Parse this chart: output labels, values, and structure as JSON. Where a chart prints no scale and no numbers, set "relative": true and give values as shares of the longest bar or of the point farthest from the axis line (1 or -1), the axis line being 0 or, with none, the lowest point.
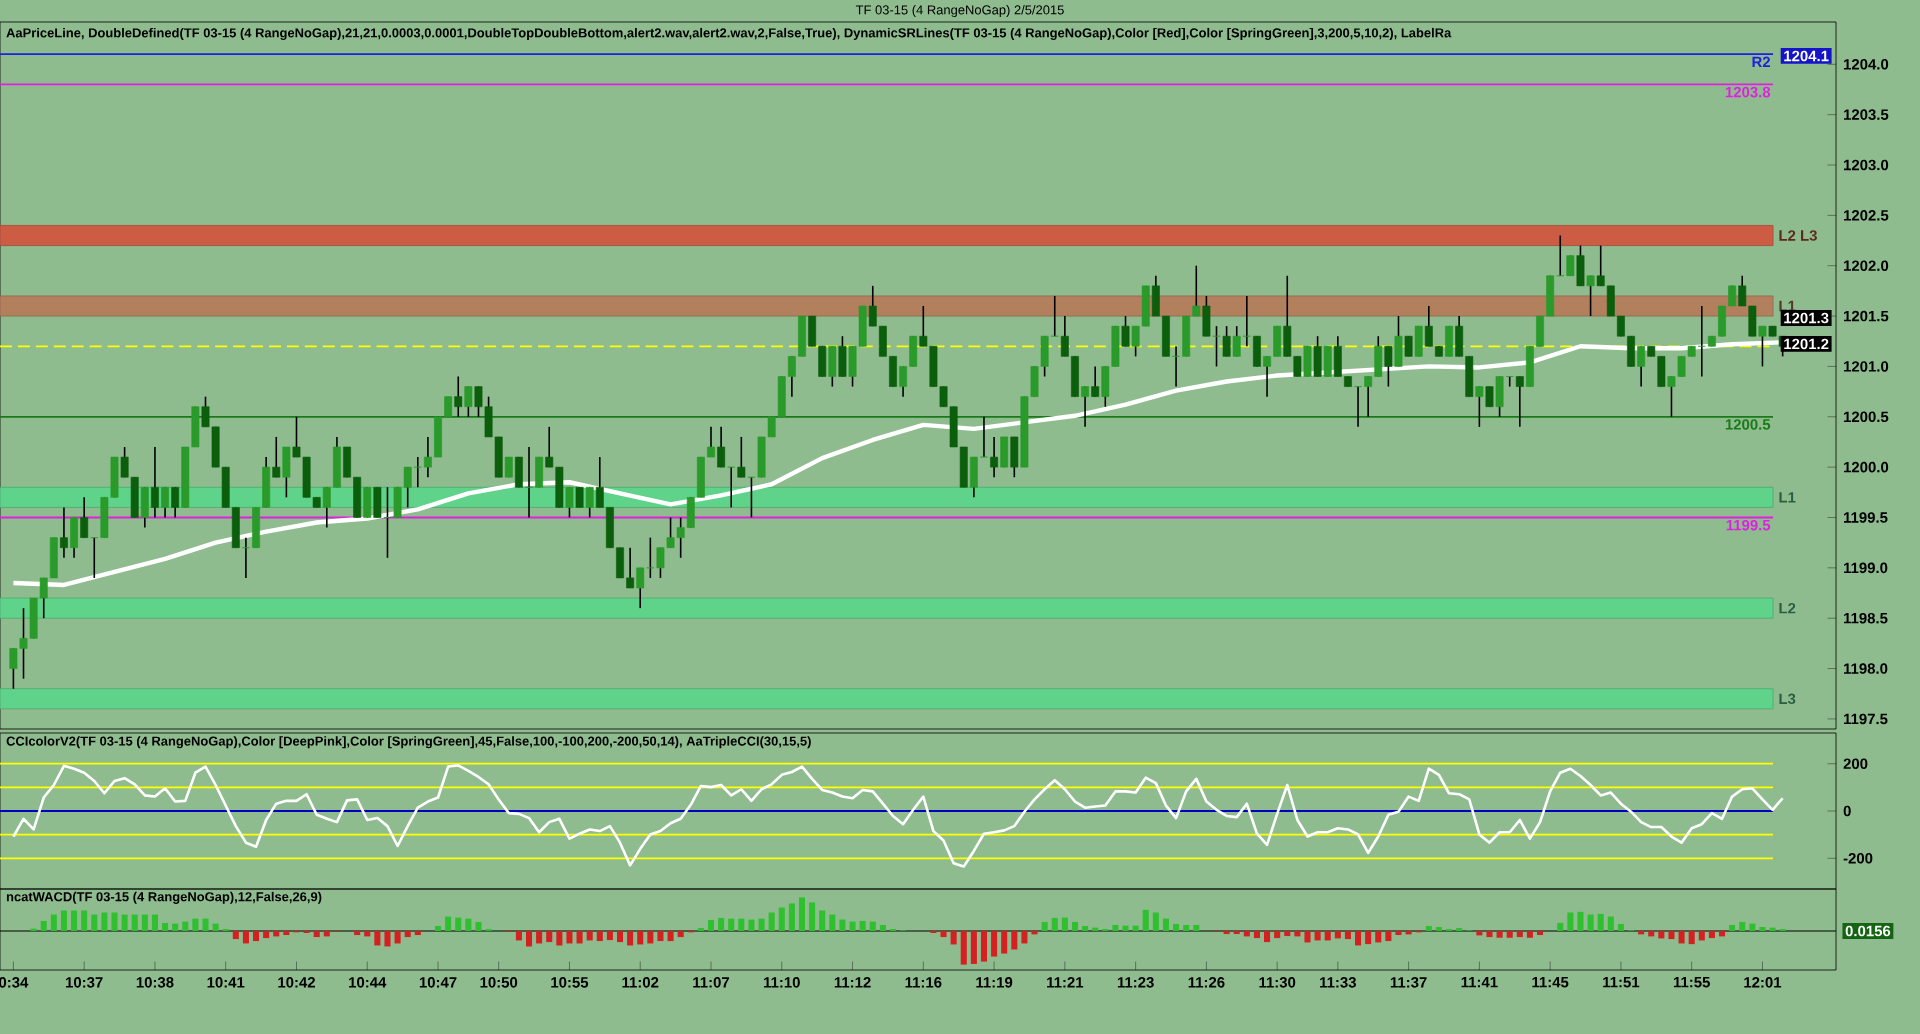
{
  "chart_data": [
    {
      "type": "candlestick",
      "title": "TF 03-15 (4 RangeNoGap)  2/5/2015",
      "subtitle": "AaPriceLine,  DoubleDefined(TF  03-15  (4  RangeNoGap),21,21,0.0003,0.0001,DoubleTopDoubleBottom,alert2.wav,alert2.wav,2,False,True),  DynamicSRLines(TF  03-15  (4  RangeNoGap),Color  [Red],Color  [SpringGreen],3,200,5,10,2),  LabelRa",
      "ohlc": [
        [
          1198.0,
          1198.2,
          1197.8,
          1198.2
        ],
        [
          1198.2,
          1198.6,
          1197.9,
          1198.3
        ],
        [
          1198.3,
          1198.7,
          1198.3,
          1198.7
        ],
        [
          1198.7,
          1198.9,
          1198.5,
          1198.9
        ],
        [
          1198.9,
          1199.3,
          1198.9,
          1199.3
        ],
        [
          1199.3,
          1199.6,
          1199.1,
          1199.2
        ],
        [
          1199.2,
          1199.5,
          1199.1,
          1199.5
        ],
        [
          1199.5,
          1199.7,
          1199.3,
          1199.3
        ],
        [
          1199.3,
          1199.3,
          1198.9,
          1199.3
        ],
        [
          1199.3,
          1199.7,
          1199.3,
          1199.7
        ],
        [
          1199.7,
          1200.1,
          1199.7,
          1200.1
        ],
        [
          1200.1,
          1200.2,
          1199.9,
          1199.9
        ],
        [
          1199.9,
          1199.9,
          1199.5,
          1199.5
        ],
        [
          1199.5,
          1199.8,
          1199.4,
          1199.8
        ],
        [
          1199.8,
          1200.2,
          1199.5,
          1199.6
        ],
        [
          1199.6,
          1199.8,
          1199.5,
          1199.8
        ],
        [
          1199.8,
          1199.8,
          1199.5,
          1199.6
        ],
        [
          1199.6,
          1200.2,
          1199.6,
          1200.2
        ],
        [
          1200.2,
          1200.6,
          1200.2,
          1200.6
        ],
        [
          1200.6,
          1200.7,
          1200.4,
          1200.4
        ],
        [
          1200.4,
          1200.4,
          1200.0,
          1200.0
        ],
        [
          1200.0,
          1200.0,
          1199.6,
          1199.6
        ],
        [
          1199.6,
          1199.6,
          1199.2,
          1199.2
        ],
        [
          1199.2,
          1199.3,
          1198.9,
          1199.2
        ],
        [
          1199.2,
          1199.6,
          1199.2,
          1199.6
        ],
        [
          1199.6,
          1200.1,
          1199.6,
          1200.0
        ],
        [
          1200.0,
          1200.3,
          1199.9,
          1199.9
        ],
        [
          1199.9,
          1200.2,
          1199.7,
          1200.2
        ],
        [
          1200.2,
          1200.5,
          1200.1,
          1200.1
        ],
        [
          1200.1,
          1200.1,
          1199.7,
          1199.7
        ],
        [
          1199.7,
          1199.7,
          1199.6,
          1199.6
        ],
        [
          1199.6,
          1199.8,
          1199.4,
          1199.8
        ],
        [
          1199.8,
          1200.3,
          1199.8,
          1200.2
        ],
        [
          1200.2,
          1200.2,
          1199.9,
          1199.9
        ],
        [
          1199.9,
          1199.9,
          1199.5,
          1199.5
        ],
        [
          1199.5,
          1199.8,
          1199.5,
          1199.8
        ],
        [
          1199.8,
          1199.8,
          1199.5,
          1199.5
        ],
        [
          1199.5,
          1199.8,
          1199.1,
          1199.5
        ],
        [
          1199.5,
          1199.8,
          1199.5,
          1199.8
        ],
        [
          1199.8,
          1200.0,
          1199.6,
          1200.0
        ],
        [
          1200.0,
          1200.1,
          1199.8,
          1200.0
        ],
        [
          1200.0,
          1200.3,
          1199.9,
          1200.1
        ],
        [
          1200.1,
          1200.5,
          1200.1,
          1200.5
        ],
        [
          1200.5,
          1200.7,
          1200.5,
          1200.7
        ],
        [
          1200.7,
          1200.9,
          1200.5,
          1200.6
        ],
        [
          1200.6,
          1200.8,
          1200.5,
          1200.8
        ],
        [
          1200.8,
          1200.8,
          1200.5,
          1200.6
        ],
        [
          1200.6,
          1200.7,
          1200.3,
          1200.3
        ],
        [
          1200.3,
          1200.3,
          1199.9,
          1199.9
        ],
        [
          1199.9,
          1200.1,
          1199.9,
          1200.1
        ],
        [
          1200.1,
          1200.1,
          1199.8,
          1199.8
        ],
        [
          1199.8,
          1200.2,
          1199.5,
          1199.8
        ],
        [
          1199.8,
          1200.1,
          1199.8,
          1200.1
        ],
        [
          1200.1,
          1200.4,
          1200.0,
          1200.0
        ],
        [
          1200.0,
          1200.0,
          1199.6,
          1199.6
        ],
        [
          1199.6,
          1199.8,
          1199.5,
          1199.8
        ],
        [
          1199.8,
          1199.8,
          1199.6,
          1199.6
        ],
        [
          1199.6,
          1199.8,
          1199.5,
          1199.8
        ],
        [
          1199.8,
          1200.1,
          1199.6,
          1199.6
        ],
        [
          1199.6,
          1199.6,
          1199.2,
          1199.2
        ],
        [
          1199.2,
          1199.2,
          1198.9,
          1198.9
        ],
        [
          1198.9,
          1199.2,
          1198.8,
          1198.8
        ],
        [
          1198.8,
          1199.0,
          1198.6,
          1199.0
        ],
        [
          1199.0,
          1199.3,
          1198.9,
          1199.0
        ],
        [
          1199.0,
          1199.2,
          1198.9,
          1199.2
        ],
        [
          1199.2,
          1199.5,
          1199.2,
          1199.3
        ],
        [
          1199.3,
          1199.5,
          1199.1,
          1199.4
        ],
        [
          1199.4,
          1199.7,
          1199.4,
          1199.7
        ],
        [
          1199.7,
          1200.1,
          1199.7,
          1200.1
        ],
        [
          1200.1,
          1200.4,
          1200.1,
          1200.2
        ],
        [
          1200.2,
          1200.4,
          1200.0,
          1200.0
        ],
        [
          1200.0,
          1200.0,
          1199.6,
          1200.0
        ],
        [
          1200.0,
          1200.3,
          1199.9,
          1199.9
        ],
        [
          1199.9,
          1199.9,
          1199.5,
          1199.9
        ],
        [
          1199.9,
          1200.3,
          1199.9,
          1200.3
        ],
        [
          1200.3,
          1200.5,
          1200.3,
          1200.5
        ],
        [
          1200.5,
          1200.9,
          1200.5,
          1200.9
        ],
        [
          1200.9,
          1201.1,
          1200.7,
          1201.1
        ],
        [
          1201.1,
          1201.5,
          1201.1,
          1201.5
        ],
        [
          1201.5,
          1201.5,
          1201.2,
          1201.2
        ],
        [
          1201.2,
          1201.2,
          1200.9,
          1200.9
        ],
        [
          1200.9,
          1201.2,
          1200.8,
          1201.2
        ],
        [
          1201.2,
          1201.3,
          1200.9,
          1200.9
        ],
        [
          1200.9,
          1201.2,
          1200.8,
          1201.2
        ],
        [
          1201.2,
          1201.6,
          1201.2,
          1201.6
        ],
        [
          1201.6,
          1201.8,
          1201.4,
          1201.4
        ],
        [
          1201.4,
          1201.4,
          1201.1,
          1201.1
        ],
        [
          1201.1,
          1201.1,
          1200.8,
          1200.8
        ],
        [
          1200.8,
          1201.0,
          1200.7,
          1201.0
        ],
        [
          1201.0,
          1201.3,
          1201.0,
          1201.3
        ],
        [
          1201.3,
          1201.6,
          1201.2,
          1201.2
        ],
        [
          1201.2,
          1201.2,
          1200.8,
          1200.8
        ],
        [
          1200.8,
          1200.8,
          1200.6,
          1200.6
        ],
        [
          1200.6,
          1200.6,
          1200.2,
          1200.2
        ],
        [
          1200.2,
          1200.2,
          1199.8,
          1199.8
        ],
        [
          1199.8,
          1200.1,
          1199.7,
          1200.1
        ],
        [
          1200.1,
          1200.5,
          1200.1,
          1200.1
        ],
        [
          1200.1,
          1200.3,
          1199.9,
          1200.0
        ],
        [
          1200.0,
          1200.3,
          1200.0,
          1200.3
        ],
        [
          1200.3,
          1200.3,
          1199.9,
          1200.0
        ],
        [
          1200.0,
          1200.7,
          1200.0,
          1200.7
        ],
        [
          1200.7,
          1201.0,
          1200.7,
          1201.0
        ],
        [
          1201.0,
          1201.3,
          1200.9,
          1201.3
        ],
        [
          1201.3,
          1201.7,
          1201.3,
          1201.3
        ],
        [
          1201.3,
          1201.5,
          1201.1,
          1201.1
        ],
        [
          1201.1,
          1201.1,
          1200.7,
          1200.7
        ],
        [
          1200.7,
          1200.8,
          1200.4,
          1200.8
        ],
        [
          1200.8,
          1201.0,
          1200.7,
          1200.7
        ],
        [
          1200.7,
          1201.0,
          1200.6,
          1201.0
        ],
        [
          1201.0,
          1201.4,
          1201.0,
          1201.4
        ],
        [
          1201.4,
          1201.5,
          1201.2,
          1201.2
        ],
        [
          1201.2,
          1201.4,
          1201.1,
          1201.4
        ],
        [
          1201.4,
          1201.8,
          1201.4,
          1201.8
        ],
        [
          1201.8,
          1201.9,
          1201.5,
          1201.5
        ],
        [
          1201.5,
          1201.5,
          1201.1,
          1201.1
        ],
        [
          1201.1,
          1201.2,
          1200.8,
          1201.1
        ],
        [
          1201.1,
          1201.5,
          1201.1,
          1201.5
        ],
        [
          1201.5,
          1202.0,
          1201.5,
          1201.6
        ],
        [
          1201.6,
          1201.7,
          1201.3,
          1201.3
        ],
        [
          1201.3,
          1201.4,
          1201.0,
          1201.3
        ],
        [
          1201.3,
          1201.4,
          1201.1,
          1201.1
        ],
        [
          1201.1,
          1201.4,
          1201.1,
          1201.3
        ],
        [
          1201.3,
          1201.7,
          1201.2,
          1201.3
        ],
        [
          1201.3,
          1201.3,
          1201.0,
          1201.0
        ],
        [
          1201.0,
          1201.1,
          1200.7,
          1201.1
        ],
        [
          1201.1,
          1201.4,
          1201.1,
          1201.4
        ],
        [
          1201.4,
          1201.9,
          1201.1,
          1201.1
        ],
        [
          1201.1,
          1201.1,
          1200.9,
          1200.9
        ],
        [
          1200.9,
          1201.2,
          1200.9,
          1201.2
        ],
        [
          1201.2,
          1201.3,
          1200.9,
          1200.9
        ],
        [
          1200.9,
          1201.2,
          1200.9,
          1201.2
        ],
        [
          1201.2,
          1201.3,
          1200.9,
          1200.9
        ],
        [
          1200.9,
          1200.9,
          1200.8,
          1200.8
        ],
        [
          1200.8,
          1200.8,
          1200.4,
          1200.8
        ],
        [
          1200.8,
          1200.9,
          1200.5,
          1200.9
        ],
        [
          1200.9,
          1201.3,
          1200.9,
          1201.2
        ],
        [
          1201.2,
          1201.2,
          1200.8,
          1201.0
        ],
        [
          1201.0,
          1201.5,
          1201.0,
          1201.3
        ],
        [
          1201.3,
          1201.3,
          1201.1,
          1201.1
        ],
        [
          1201.1,
          1201.4,
          1201.1,
          1201.4
        ],
        [
          1201.4,
          1201.6,
          1201.2,
          1201.2
        ],
        [
          1201.2,
          1201.2,
          1201.1,
          1201.1
        ],
        [
          1201.1,
          1201.4,
          1201.1,
          1201.4
        ],
        [
          1201.4,
          1201.5,
          1201.1,
          1201.1
        ],
        [
          1201.1,
          1201.1,
          1200.7,
          1200.7
        ],
        [
          1200.7,
          1200.8,
          1200.4,
          1200.8
        ],
        [
          1200.8,
          1200.8,
          1200.6,
          1200.6
        ],
        [
          1200.6,
          1200.9,
          1200.5,
          1200.9
        ],
        [
          1200.9,
          1200.9,
          1200.8,
          1200.9
        ],
        [
          1200.9,
          1200.9,
          1200.4,
          1200.8
        ],
        [
          1200.8,
          1201.2,
          1200.8,
          1201.2
        ],
        [
          1201.2,
          1201.5,
          1201.2,
          1201.5
        ],
        [
          1201.5,
          1201.9,
          1201.5,
          1201.9
        ],
        [
          1201.9,
          1202.3,
          1201.9,
          1201.9
        ],
        [
          1201.9,
          1202.1,
          1201.9,
          1202.1
        ],
        [
          1202.1,
          1202.2,
          1201.8,
          1201.8
        ],
        [
          1201.8,
          1201.9,
          1201.5,
          1201.9
        ],
        [
          1201.9,
          1202.2,
          1201.8,
          1201.8
        ],
        [
          1201.8,
          1201.8,
          1201.5,
          1201.5
        ],
        [
          1201.5,
          1201.5,
          1201.3,
          1201.3
        ],
        [
          1201.3,
          1201.3,
          1201.0,
          1201.0
        ],
        [
          1201.0,
          1201.2,
          1200.8,
          1201.2
        ],
        [
          1201.2,
          1201.2,
          1201.1,
          1201.1
        ],
        [
          1201.1,
          1201.1,
          1200.8,
          1200.8
        ],
        [
          1200.8,
          1200.9,
          1200.5,
          1200.9
        ],
        [
          1200.9,
          1201.1,
          1200.9,
          1201.1
        ],
        [
          1201.1,
          1201.2,
          1201.1,
          1201.2
        ],
        [
          1201.2,
          1201.6,
          1200.9,
          1201.2
        ],
        [
          1201.2,
          1201.3,
          1201.2,
          1201.3
        ],
        [
          1201.3,
          1201.6,
          1201.3,
          1201.6
        ],
        [
          1201.6,
          1201.8,
          1201.6,
          1201.8
        ],
        [
          1201.8,
          1201.9,
          1201.6,
          1201.6
        ],
        [
          1201.6,
          1201.6,
          1201.3,
          1201.3
        ],
        [
          1201.3,
          1201.4,
          1201.0,
          1201.4
        ],
        [
          1201.4,
          1201.4,
          1201.3,
          1201.3
        ],
        [
          1201.3,
          1201.3,
          1201.1,
          1201.2
        ]
      ],
      "colors": [
        "#2a9a2a",
        "#2a9a2a",
        "#2a9a2a",
        "#2a9a2a",
        "#2a9a2a",
        "#0b5e0b",
        "#2a9a2a",
        "#0b5e0b",
        "#2a9a2a",
        "#2a9a2a",
        "#2a9a2a",
        "#0b5e0b",
        "#0b5e0b",
        "#2a9a2a",
        "#0b5e0b",
        "#2a9a2a",
        "#0b5e0b",
        "#2a9a2a",
        "#2a9a2a",
        "#0b5e0b",
        "#0b5e0b",
        "#0b5e0b",
        "#0b5e0b",
        "#2a9a2a",
        "#2a9a2a",
        "#2a9a2a",
        "#0b5e0b",
        "#2a9a2a",
        "#0b5e0b",
        "#0b5e0b",
        "#0b5e0b",
        "#2a9a2a",
        "#2a9a2a",
        "#0b5e0b",
        "#0b5e0b",
        "#2a9a2a",
        "#0b5e0b",
        "#2a9a2a",
        "#2a9a2a",
        "#2a9a2a",
        "#2a9a2a",
        "#2a9a2a",
        "#2a9a2a",
        "#2a9a2a",
        "#0b5e0b",
        "#2a9a2a",
        "#0b5e0b",
        "#0b5e0b",
        "#0b5e0b",
        "#2a9a2a",
        "#0b5e0b",
        "#2a9a2a",
        "#2a9a2a",
        "#0b5e0b",
        "#0b5e0b",
        "#2a9a2a",
        "#0b5e0b",
        "#2a9a2a",
        "#0b5e0b",
        "#0b5e0b",
        "#0b5e0b",
        "#0b5e0b",
        "#2a9a2a",
        "#2a9a2a",
        "#2a9a2a",
        "#2a9a2a",
        "#2a9a2a",
        "#2a9a2a",
        "#2a9a2a",
        "#2a9a2a",
        "#0b5e0b",
        "#2a9a2a",
        "#0b5e0b",
        "#2a9a2a",
        "#2a9a2a",
        "#2a9a2a",
        "#2a9a2a",
        "#2a9a2a",
        "#2a9a2a",
        "#0b5e0b",
        "#0b5e0b",
        "#2a9a2a",
        "#0b5e0b",
        "#2a9a2a",
        "#2a9a2a",
        "#0b5e0b",
        "#0b5e0b",
        "#0b5e0b",
        "#2a9a2a",
        "#2a9a2a",
        "#0b5e0b",
        "#0b5e0b",
        "#0b5e0b",
        "#0b5e0b",
        "#0b5e0b",
        "#2a9a2a",
        "#2a9a2a",
        "#0b5e0b",
        "#2a9a2a",
        "#0b5e0b",
        "#2a9a2a",
        "#2a9a2a",
        "#2a9a2a",
        "#2a9a2a",
        "#0b5e0b",
        "#0b5e0b",
        "#2a9a2a",
        "#0b5e0b",
        "#2a9a2a",
        "#2a9a2a",
        "#0b5e0b",
        "#2a9a2a",
        "#2a9a2a",
        "#0b5e0b",
        "#0b5e0b",
        "#2a9a2a",
        "#2a9a2a",
        "#2a9a2a",
        "#0b5e0b",
        "#2a9a2a",
        "#0b5e0b",
        "#2a9a2a",
        "#2a9a2a",
        "#0b5e0b",
        "#2a9a2a",
        "#2a9a2a",
        "#0b5e0b",
        "#0b5e0b",
        "#2a9a2a",
        "#0b5e0b",
        "#2a9a2a",
        "#0b5e0b",
        "#0b5e0b",
        "#2a9a2a",
        "#2a9a2a",
        "#2a9a2a",
        "#0b5e0b",
        "#2a9a2a",
        "#0b5e0b",
        "#2a9a2a",
        "#0b5e0b",
        "#0b5e0b",
        "#2a9a2a",
        "#0b5e0b",
        "#0b5e0b",
        "#2a9a2a",
        "#0b5e0b",
        "#2a9a2a",
        "#2a9a2a",
        "#0b5e0b",
        "#2a9a2a",
        "#2a9a2a",
        "#2a9a2a",
        "#2a9a2a",
        "#2a9a2a",
        "#0b5e0b",
        "#2a9a2a",
        "#0b5e0b",
        "#0b5e0b",
        "#0b5e0b",
        "#0b5e0b",
        "#2a9a2a",
        "#0b5e0b",
        "#0b5e0b",
        "#2a9a2a",
        "#2a9a2a",
        "#2a9a2a",
        "#2a9a2a",
        "#2a9a2a",
        "#2a9a2a",
        "#2a9a2a",
        "#0b5e0b",
        "#0b5e0b",
        "#2a9a2a",
        "#0b5e0b",
        "#0b5e0b"
      ],
      "series": [
        {
          "type": "line",
          "color": "#ffffff",
          "values": [
            1198.85,
            null,
            null,
            null,
            null,
            1198.83,
            null,
            null,
            null,
            null,
            1198.96,
            null,
            null,
            null,
            null,
            1199.09,
            null,
            null,
            null,
            null,
            1199.25,
            null,
            null,
            null,
            null,
            1199.36,
            null,
            null,
            null,
            null,
            1199.45,
            null,
            null,
            null,
            null,
            1199.49,
            null,
            null,
            null,
            null,
            1199.58,
            null,
            null,
            null,
            null,
            1199.74,
            null,
            null,
            null,
            null,
            1199.83,
            null,
            null,
            null,
            null,
            1199.85,
            null,
            null,
            null,
            null,
            1199.74,
            null,
            null,
            null,
            null,
            1199.63,
            null,
            null,
            null,
            null,
            1199.72,
            null,
            null,
            null,
            null,
            1199.83,
            null,
            null,
            null,
            null,
            1200.09,
            null,
            null,
            null,
            null,
            1200.27,
            null,
            null,
            null,
            null,
            1200.42,
            null,
            null,
            null,
            null,
            1200.38,
            null,
            null,
            null,
            null,
            null,
            null,
            null,
            null,
            null,
            1200.51,
            null,
            null,
            null,
            null,
            1200.62,
            null,
            null,
            null,
            null,
            1200.76,
            null,
            null,
            null,
            null,
            1200.85,
            null,
            null,
            null,
            null,
            1200.91,
            null,
            null,
            null,
            null,
            null,
            null,
            null,
            null,
            null,
            null,
            null,
            null,
            null,
            null,
            1201.0,
            null,
            null,
            null,
            null,
            1200.99,
            null,
            null,
            null,
            null,
            1201.04,
            null,
            null,
            null,
            null,
            1201.2,
            null,
            null,
            null,
            null,
            1201.18,
            null,
            null,
            null,
            null,
            1201.18,
            null,
            null,
            null,
            null,
            1201.22,
            null,
            null,
            null,
            null,
            1201.24
          ]
        }
      ],
      "ylim": [
        1197.4,
        1204.42
      ],
      "yticks": [
        1197.5,
        {
          "value": 1198,
          "label": "1198.0"
        },
        1198.5,
        {
          "value": 1199,
          "label": "1199.0"
        },
        1199.5,
        {
          "value": 1200,
          "label": "1200.0"
        },
        1200.5,
        {
          "value": 1201,
          "label": "1201.0"
        },
        1201.5,
        {
          "value": 1202,
          "label": "1202.0"
        },
        1202.5,
        {
          "value": 1203,
          "label": "1203.0"
        },
        1203.5,
        {
          "value": 1204,
          "label": "1204.0"
        }
      ],
      "bands": [
        {
          "axis": "y",
          "from": 1202.2,
          "to": 1202.4,
          "label": "L2 L3",
          "color": "#cd5c45"
        },
        {
          "axis": "y",
          "from": 1201.5,
          "to": 1201.7,
          "label": "L1",
          "color": "#b3805e"
        },
        {
          "axis": "y",
          "from": 1199.6,
          "to": 1199.8,
          "label": "L1",
          "color": "#5fd38a"
        },
        {
          "axis": "y",
          "from": 1198.5,
          "to": 1198.7,
          "label": "L2",
          "color": "#5fd38a"
        },
        {
          "axis": "y",
          "from": 1197.6,
          "to": 1197.8,
          "label": "L3",
          "color": "#5fd38a"
        }
      ],
      "ref_lines": [
        {
          "axis": "y",
          "value": 1204.1,
          "label": "R2",
          "color": "#2020e0"
        },
        {
          "axis": "y",
          "value": 1203.8,
          "label": "1203.8",
          "color": "#e020e0"
        },
        {
          "axis": "y",
          "value": 1201.2,
          "color": "#ffff00",
          "line_style": "dashed"
        },
        {
          "axis": "y",
          "value": 1200.5,
          "label": "1200.5",
          "color": "#1a7a1a"
        },
        {
          "axis": "y",
          "value": 1199.5,
          "label": "1199.5",
          "color": "#e020e0"
        }
      ],
      "annotations": [
        "1204.1",
        "1201.3",
        "1201.2"
      ],
      "tick_labels": "y"
    },
    {
      "type": "line",
      "title": "CCIcolorV2(TF  03-15  (4  RangeNoGap),Color  [DeepPink],Color  [SpringGreen],45,False,100,-100,200,-200,50,14),  AaTripleCCI(30,15,5)",
      "values": [
        -108,
        -33,
        -78,
        57,
        110,
        191,
        179,
        162,
        127,
        75,
        127,
        139,
        113,
        66,
        61,
        96,
        40,
        43,
        162,
        188,
        110,
        23,
        -64,
        -134,
        -151,
        -38,
        31,
        43,
        43,
        71,
        -16,
        -33,
        -47,
        45,
        49,
        -38,
        -30,
        -64,
        -148,
        -64,
        14,
        40,
        57,
        188,
        193,
        170,
        144,
        113,
        49,
        -9,
        -12,
        -30,
        -90,
        -47,
        -33,
        -117,
        -96,
        -78,
        -85,
        -64,
        -134,
        -230,
        -160,
        -99,
        -85,
        -52,
        -33,
        26,
        106,
        101,
        110,
        66,
        92,
        43,
        92,
        113,
        153,
        165,
        188,
        136,
        89,
        78,
        61,
        54,
        89,
        83,
        31,
        -21,
        -56,
        5,
        61,
        -85,
        -125,
        -221,
        -235,
        -169,
        -96,
        -90,
        -82,
        -64,
        -3,
        49,
        92,
        130,
        92,
        40,
        14,
        19,
        23,
        83,
        83,
        78,
        141,
        118,
        23,
        -30,
        83,
        136,
        40,
        5,
        -21,
        -26,
        31,
        -96,
        -143,
        -12,
        110,
        -38,
        -108,
        -90,
        -90,
        -73,
        -78,
        -99,
        -177,
        -108,
        -16,
        -3,
        61,
        43,
        179,
        153,
        75,
        71,
        49,
        -99,
        -134,
        -90,
        -90,
        -38,
        -117,
        -47,
        83,
        162,
        179,
        148,
        110,
        66,
        78,
        31,
        -3,
        -47,
        -68,
        -68,
        -108,
        -134,
        -73,
        -56,
        -9,
        -33,
        61,
        92,
        96,
        49,
        5,
        54
      ],
      "color": "#ffffff",
      "ylim": [
        -330,
        330
      ],
      "yticks": [
        -200,
        0,
        200
      ],
      "ref_lines": [
        {
          "axis": "y",
          "value": 200,
          "color": "#ffff00"
        },
        {
          "axis": "y",
          "value": 100,
          "color": "#ffff00"
        },
        {
          "axis": "y",
          "value": 0,
          "color": "#0000c0"
        },
        {
          "axis": "y",
          "value": -100,
          "color": "#ffff00"
        },
        {
          "axis": "y",
          "value": -200,
          "color": "#ffff00"
        }
      ],
      "tick_labels": "y"
    },
    {
      "type": "bar",
      "title": "ncatWACD(TF 03-15 (4 RangeNoGap),12,False,26,9)",
      "relative": true,
      "categories": [
        "0:34",
        null,
        null,
        null,
        null,
        null,
        null,
        "10:37",
        null,
        null,
        null,
        null,
        null,
        null,
        "10:38",
        null,
        null,
        null,
        null,
        null,
        null,
        "10:41",
        null,
        null,
        null,
        null,
        null,
        null,
        "10:42",
        null,
        null,
        null,
        null,
        null,
        null,
        "10:44",
        null,
        null,
        null,
        null,
        null,
        null,
        "10:47",
        null,
        null,
        null,
        null,
        null,
        "10:50",
        null,
        null,
        null,
        null,
        null,
        null,
        "10:55",
        null,
        null,
        null,
        null,
        null,
        null,
        "11:02",
        null,
        null,
        null,
        null,
        null,
        null,
        "11:07",
        null,
        null,
        null,
        null,
        null,
        null,
        "11:10",
        null,
        null,
        null,
        null,
        null,
        null,
        "11:12",
        null,
        null,
        null,
        null,
        null,
        null,
        "11:16",
        null,
        null,
        null,
        null,
        null,
        null,
        "11:19",
        null,
        null,
        null,
        null,
        null,
        null,
        "11:21",
        null,
        null,
        null,
        null,
        null,
        null,
        "11:23",
        null,
        null,
        null,
        null,
        null,
        null,
        "11:26",
        null,
        null,
        null,
        null,
        null,
        null,
        "11:30",
        null,
        null,
        null,
        null,
        null,
        "11:33",
        null,
        null,
        null,
        null,
        null,
        null,
        "11:37",
        null,
        null,
        null,
        null,
        null,
        null,
        "11:41",
        null,
        null,
        null,
        null,
        null,
        null,
        "11:45",
        null,
        null,
        null,
        null,
        null,
        null,
        "11:51",
        null,
        null,
        null,
        null,
        null,
        null,
        "11:55",
        null,
        null,
        null,
        null,
        null,
        null,
        "12:01",
        null,
        null
      ],
      "values": [
        null,
        null,
        0.07,
        0.3,
        0.49,
        0.61,
        0.61,
        0.61,
        0.49,
        0.55,
        0.55,
        0.49,
        0.49,
        0.49,
        0.49,
        0.24,
        0.22,
        0.28,
        0.37,
        0.37,
        0.22,
        0.06,
        -0.24,
        -0.37,
        -0.3,
        -0.21,
        -0.16,
        -0.12,
        -0.04,
        -0.06,
        -0.18,
        -0.16,
        -0.02,
        0.0,
        -0.12,
        -0.16,
        -0.43,
        -0.46,
        -0.37,
        -0.18,
        -0.12,
        0.0,
        0.15,
        0.43,
        0.4,
        0.37,
        0.27,
        0.06,
        0.0,
        -0.02,
        -0.28,
        -0.46,
        -0.37,
        -0.33,
        -0.43,
        -0.37,
        -0.37,
        -0.28,
        -0.3,
        -0.27,
        -0.33,
        -0.43,
        -0.4,
        -0.37,
        -0.3,
        -0.3,
        -0.18,
        -0.04,
        0.09,
        0.33,
        0.39,
        0.37,
        0.37,
        0.34,
        0.37,
        0.55,
        0.7,
        0.82,
        1.0,
        0.85,
        0.61,
        0.49,
        0.34,
        0.28,
        0.3,
        0.28,
        0.18,
        0.06,
        0.02,
        0.0,
        0.0,
        -0.06,
        -0.18,
        -0.4,
        -1.0,
        -0.98,
        -0.91,
        -0.76,
        -0.67,
        -0.55,
        -0.37,
        -0.1,
        0.27,
        0.39,
        0.4,
        0.27,
        0.15,
        0.1,
        0.06,
        0.18,
        0.16,
        0.16,
        0.63,
        0.55,
        0.37,
        0.21,
        0.18,
        0.18,
        0.0,
        -0.02,
        -0.09,
        -0.09,
        -0.16,
        -0.21,
        -0.33,
        -0.21,
        -0.15,
        -0.16,
        -0.34,
        -0.28,
        -0.28,
        -0.22,
        -0.24,
        -0.43,
        -0.39,
        -0.34,
        -0.3,
        -0.12,
        -0.1,
        -0.04,
        0.15,
        0.12,
        0.06,
        0.09,
        0.02,
        -0.13,
        -0.18,
        -0.2,
        -0.2,
        -0.18,
        -0.2,
        -0.12,
        0.0,
        0.24,
        0.55,
        0.57,
        0.49,
        0.51,
        0.43,
        0.21,
        0.02,
        -0.1,
        -0.16,
        -0.22,
        -0.24,
        -0.37,
        -0.39,
        -0.28,
        -0.21,
        -0.16,
        0.18,
        0.27,
        0.22,
        0.12,
        0.1,
        0.06
      ],
      "colors": [
        null,
        null,
        "#2ec02e",
        "#2ec02e",
        "#2ec02e",
        "#2ec02e",
        "#2ec02e",
        "#2ec02e",
        "#2ec02e",
        "#2ec02e",
        "#2ec02e",
        "#2ec02e",
        "#2ec02e",
        "#2ec02e",
        "#2ec02e",
        "#2ec02e",
        "#2ec02e",
        "#2ec02e",
        "#2ec02e",
        "#2ec02e",
        "#2ec02e",
        "#2ec02e",
        "#d42020",
        "#d42020",
        "#d42020",
        "#d42020",
        "#d42020",
        "#d42020",
        "#d42020",
        "#d42020",
        "#d42020",
        "#d42020",
        "#d42020",
        "#d42020",
        "#d42020",
        "#d42020",
        "#d42020",
        "#d42020",
        "#d42020",
        "#d42020",
        "#d42020",
        "#d42020",
        "#2ec02e",
        "#2ec02e",
        "#2ec02e",
        "#2ec02e",
        "#2ec02e",
        "#2ec02e",
        "#d42020",
        "#d42020",
        "#d42020",
        "#d42020",
        "#d42020",
        "#d42020",
        "#d42020",
        "#d42020",
        "#d42020",
        "#d42020",
        "#d42020",
        "#d42020",
        "#d42020",
        "#d42020",
        "#d42020",
        "#d42020",
        "#d42020",
        "#d42020",
        "#d42020",
        "#d42020",
        "#2ec02e",
        "#2ec02e",
        "#2ec02e",
        "#2ec02e",
        "#2ec02e",
        "#2ec02e",
        "#2ec02e",
        "#2ec02e",
        "#2ec02e",
        "#2ec02e",
        "#2ec02e",
        "#2ec02e",
        "#2ec02e",
        "#2ec02e",
        "#2ec02e",
        "#2ec02e",
        "#2ec02e",
        "#2ec02e",
        "#2ec02e",
        "#2ec02e",
        "#2ec02e",
        "#d42020",
        "#d42020",
        "#d42020",
        "#d42020",
        "#d42020",
        "#d42020",
        "#d42020",
        "#d42020",
        "#d42020",
        "#d42020",
        "#d42020",
        "#d42020",
        "#d42020",
        "#2ec02e",
        "#2ec02e",
        "#2ec02e",
        "#2ec02e",
        "#2ec02e",
        "#2ec02e",
        "#2ec02e",
        "#2ec02e",
        "#2ec02e",
        "#2ec02e",
        "#2ec02e",
        "#2ec02e",
        "#2ec02e",
        "#2ec02e",
        "#2ec02e",
        "#2ec02e",
        "#d42020",
        "#d42020",
        "#d42020",
        "#d42020",
        "#d42020",
        "#d42020",
        "#d42020",
        "#d42020",
        "#d42020",
        "#d42020",
        "#d42020",
        "#d42020",
        "#d42020",
        "#d42020",
        "#d42020",
        "#d42020",
        "#d42020",
        "#d42020",
        "#d42020",
        "#d42020",
        "#d42020",
        "#d42020",
        "#2ec02e",
        "#2ec02e",
        "#2ec02e",
        "#2ec02e",
        "#2ec02e",
        "#d42020",
        "#d42020",
        "#d42020",
        "#d42020",
        "#d42020",
        "#d42020",
        "#d42020",
        "#d42020",
        "#2ec02e",
        "#2ec02e",
        "#2ec02e",
        "#2ec02e",
        "#2ec02e",
        "#2ec02e",
        "#2ec02e",
        "#2ec02e",
        "#d42020",
        "#d42020",
        "#d42020",
        "#d42020",
        "#d42020",
        "#d42020",
        "#d42020",
        "#d42020",
        "#d42020",
        "#2ec02e",
        "#2ec02e",
        "#2ec02e",
        "#2ec02e",
        "#2ec02e",
        "#2ec02e"
      ],
      "annotations": [
        "0.0156"
      ],
      "tick_labels": "x"
    }
  ]
}
